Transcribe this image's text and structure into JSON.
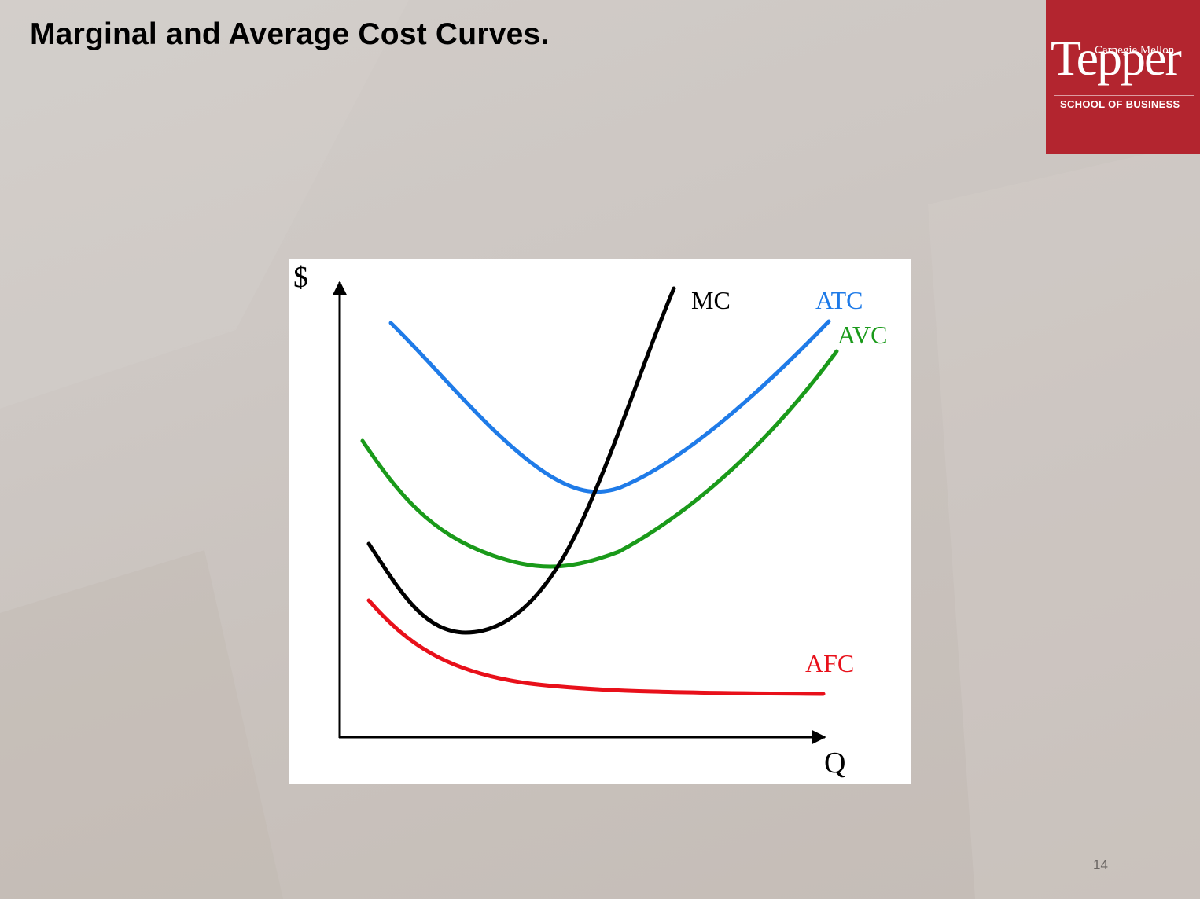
{
  "slide": {
    "title": "Marginal and Average Cost Curves.",
    "page_number": "14"
  },
  "logo": {
    "line1": "Carnegie Mellon",
    "line2": "Tepper",
    "line3": "SCHOOL OF BUSINESS",
    "background_color": "#b3252f"
  },
  "diagram": {
    "y_axis_label": "$",
    "x_axis_label": "Q",
    "curves": [
      {
        "id": "mc",
        "label": "MC",
        "color": "#000000"
      },
      {
        "id": "atc",
        "label": "ATC",
        "color": "#1f7be8"
      },
      {
        "id": "avc",
        "label": "AVC",
        "color": "#1a9a1a"
      },
      {
        "id": "afc",
        "label": "AFC",
        "color": "#e8101a"
      }
    ]
  }
}
